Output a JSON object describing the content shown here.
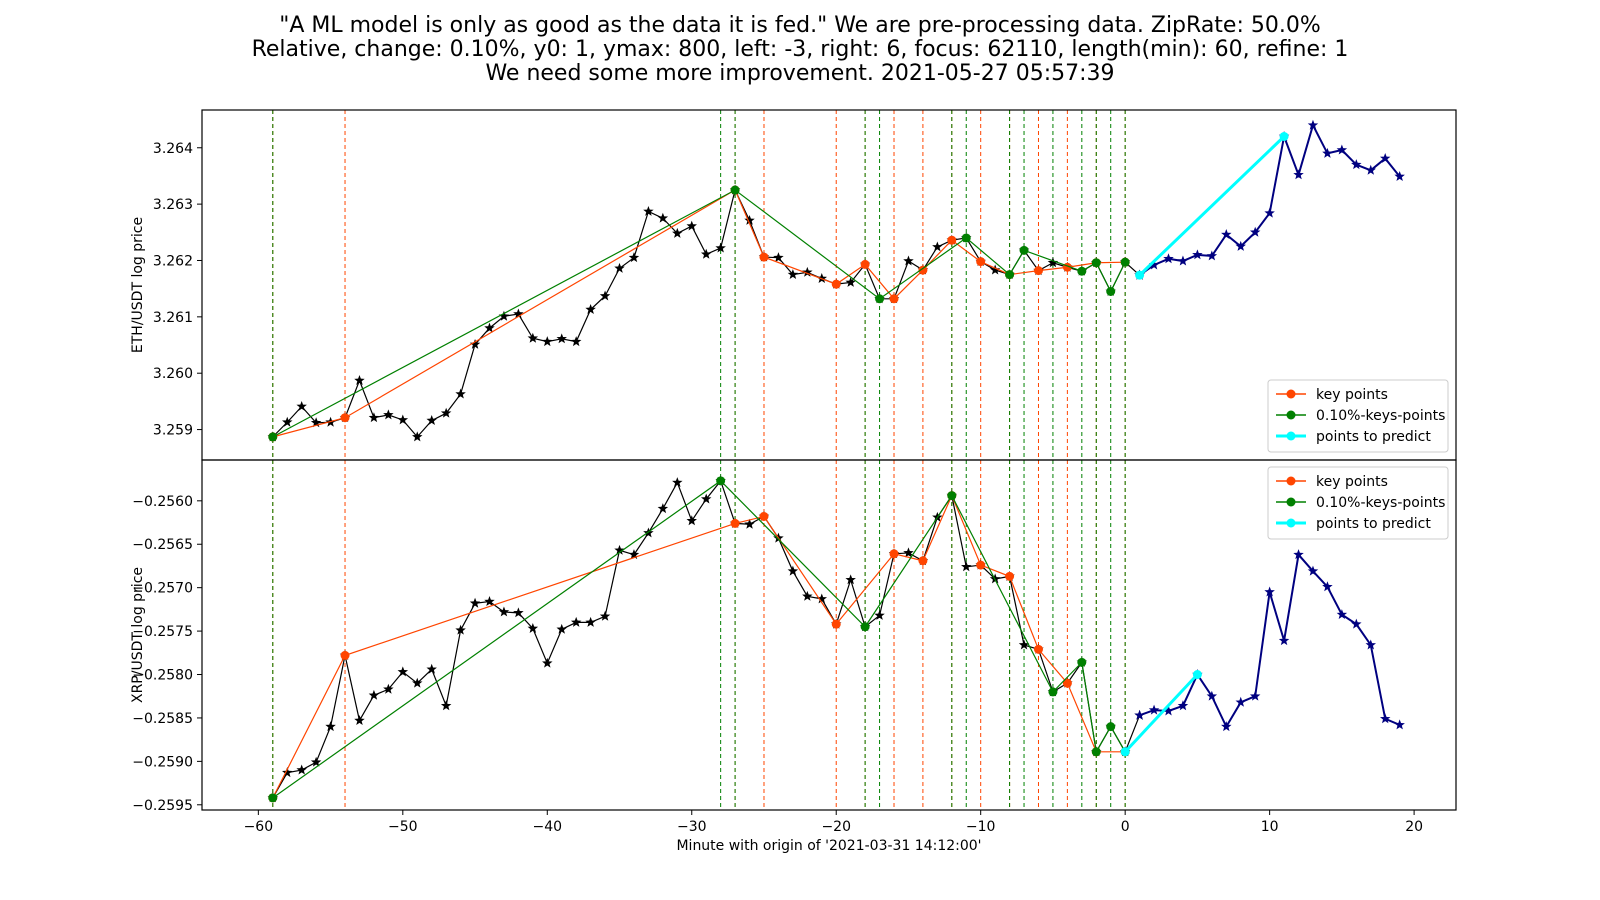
{
  "title_lines": [
    "\"A ML model is only as good as the data it is fed.\" We are pre-processing data. ZipRate: 50.0%",
    "Relative, change: 0.10%, y0: 1, ymax: 800, left: -3, right: 6, focus: 62110, length(min): 60, refine: 1",
    "We need some more improvement. 2021-05-27 05:57:39"
  ],
  "colors": {
    "price_line": "#000000",
    "future_line": "#000080",
    "key_points": "#ff4500",
    "keys_points_010": "#008000",
    "points_to_predict": "#00ffff"
  },
  "chart_data": {
    "type": "line",
    "xlabel": "Minute with origin of '2021-03-31 14:12:00'",
    "xlim": [
      -63.9,
      22.9
    ],
    "xticks": [
      -60,
      -50,
      -40,
      -30,
      -20,
      -10,
      0,
      10,
      20
    ],
    "xtick_labels": [
      "−60",
      "−50",
      "−40",
      "−30",
      "−20",
      "−10",
      "0",
      "10",
      "20"
    ],
    "legend_labels": [
      "key points",
      "0.10%-keys-points",
      "points to predict"
    ],
    "panels": [
      {
        "ylabel": "ETH/USDT log price",
        "ylim": [
          3.25846,
          3.26467
        ],
        "yticks": [
          3.259,
          3.26,
          3.261,
          3.262,
          3.263,
          3.264
        ],
        "ytick_labels": [
          "3.259",
          "3.260",
          "3.261",
          "3.262",
          "3.263",
          "3.264"
        ],
        "legend_position": "lower right",
        "price_x": [
          -59,
          -58,
          -57,
          -56,
          -55,
          -54,
          -53,
          -52,
          -51,
          -50,
          -49,
          -48,
          -47,
          -46,
          -45,
          -44,
          -43,
          -42,
          -41,
          -40,
          -39,
          -38,
          -37,
          -36,
          -35,
          -34,
          -33,
          -32,
          -31,
          -30,
          -29,
          -28,
          -27,
          -26,
          -25,
          -24,
          -23,
          -22,
          -21,
          -20,
          -19,
          -18,
          -17,
          -16,
          -15,
          -14,
          -13,
          -12,
          -11,
          -10,
          -9,
          -8,
          -7,
          -6,
          -5,
          -4,
          -3,
          -2,
          -1,
          0,
          1
        ],
        "price_y": [
          3.25887,
          3.25913,
          3.25941,
          3.25912,
          3.25913,
          3.25921,
          3.25987,
          3.25921,
          3.25926,
          3.25917,
          3.25887,
          3.25916,
          3.25929,
          3.25963,
          3.26051,
          3.2608,
          3.26101,
          3.26105,
          3.26062,
          3.26056,
          3.26061,
          3.26056,
          3.26113,
          3.26137,
          3.26186,
          3.26205,
          3.26287,
          3.26275,
          3.26248,
          3.26261,
          3.26211,
          3.26222,
          3.26325,
          3.26271,
          3.26206,
          3.26205,
          3.26175,
          3.26179,
          3.26168,
          3.26158,
          3.26161,
          3.26193,
          3.26132,
          3.26132,
          3.26199,
          3.26183,
          3.26224,
          3.26236,
          3.2624,
          3.26198,
          3.26183,
          3.26175,
          3.26218,
          3.26182,
          3.26196,
          3.26188,
          3.26181,
          3.26196,
          3.26145,
          3.26197,
          3.26174
        ],
        "future_x": [
          1,
          2,
          3,
          4,
          5,
          6,
          7,
          8,
          9,
          10,
          11,
          12,
          13,
          14,
          15,
          16,
          17,
          18,
          19
        ],
        "future_y": [
          3.26174,
          3.26192,
          3.26203,
          3.26199,
          3.2621,
          3.26208,
          3.26246,
          3.26225,
          3.2625,
          3.26284,
          3.2642,
          3.26352,
          3.2644,
          3.2639,
          3.26396,
          3.2637,
          3.2636,
          3.26381,
          3.26349
        ],
        "key_points_x": [
          -59,
          -54,
          -27,
          -25,
          -20,
          -18,
          -16,
          -14,
          -12,
          -10,
          -8,
          -6,
          -4,
          -2,
          0
        ],
        "key_points_y": [
          3.25887,
          3.25921,
          3.26325,
          3.26206,
          3.26158,
          3.26193,
          3.26132,
          3.26183,
          3.26236,
          3.26198,
          3.26175,
          3.26182,
          3.26188,
          3.26196,
          3.26197
        ],
        "keys010_x": [
          -59,
          -27,
          -17,
          -11,
          -8,
          -7,
          -3,
          -2,
          -1,
          0
        ],
        "keys010_y": [
          3.25887,
          3.26325,
          3.26132,
          3.2624,
          3.26175,
          3.26218,
          3.26181,
          3.26196,
          3.26145,
          3.26197
        ],
        "predict_x": [
          1,
          11
        ],
        "predict_y": [
          3.26174,
          3.2642
        ]
      },
      {
        "ylabel": "XRP/USDT log price",
        "ylim": [
          -0.25956,
          -0.25553
        ],
        "yticks": [
          -0.2595,
          -0.259,
          -0.2585,
          -0.258,
          -0.2575,
          -0.257,
          -0.2565,
          -0.256
        ],
        "ytick_labels": [
          "−0.2595",
          "−0.2590",
          "−0.2585",
          "−0.2580",
          "−0.2575",
          "−0.2570",
          "−0.2565",
          "−0.2560"
        ],
        "legend_position": "upper right",
        "price_x": [
          -59,
          -58,
          -57,
          -56,
          -55,
          -54,
          -53,
          -52,
          -51,
          -50,
          -49,
          -48,
          -47,
          -46,
          -45,
          -44,
          -43,
          -42,
          -41,
          -40,
          -39,
          -38,
          -37,
          -36,
          -35,
          -34,
          -33,
          -32,
          -31,
          -30,
          -29,
          -28,
          -27,
          -26,
          -25,
          -24,
          -23,
          -22,
          -21,
          -20,
          -19,
          -18,
          -17,
          -16,
          -15,
          -14,
          -13,
          -12,
          -11,
          -10,
          -9,
          -8,
          -7,
          -6,
          -5,
          -4,
          -3,
          -2,
          -1,
          0,
          1
        ],
        "price_y": [
          -0.25942,
          -0.25913,
          -0.2591,
          -0.25901,
          -0.2586,
          -0.25778,
          -0.25853,
          -0.25824,
          -0.25817,
          -0.25797,
          -0.2581,
          -0.25794,
          -0.25836,
          -0.25749,
          -0.25718,
          -0.25716,
          -0.25728,
          -0.25729,
          -0.25747,
          -0.25787,
          -0.25748,
          -0.2574,
          -0.2574,
          -0.25733,
          -0.25657,
          -0.25662,
          -0.25637,
          -0.25609,
          -0.25579,
          -0.25623,
          -0.25598,
          -0.25577,
          -0.25626,
          -0.25627,
          -0.25618,
          -0.25643,
          -0.25681,
          -0.2571,
          -0.25713,
          -0.25742,
          -0.25691,
          -0.25745,
          -0.25732,
          -0.25661,
          -0.2566,
          -0.25669,
          -0.25619,
          -0.25594,
          -0.25676,
          -0.25674,
          -0.2569,
          -0.25687,
          -0.25766,
          -0.25771,
          -0.2582,
          -0.2581,
          -0.25786,
          -0.25889,
          -0.2586,
          -0.25889,
          -0.25847
        ],
        "future_x": [
          1,
          2,
          3,
          4,
          5,
          6,
          7,
          8,
          9,
          10,
          11,
          12,
          13,
          14,
          15,
          16,
          17,
          18,
          19
        ],
        "future_y": [
          -0.25847,
          -0.25841,
          -0.25842,
          -0.25836,
          -0.258,
          -0.25825,
          -0.2586,
          -0.25832,
          -0.25825,
          -0.25705,
          -0.25761,
          -0.25662,
          -0.25681,
          -0.25699,
          -0.25731,
          -0.25742,
          -0.25766,
          -0.25851,
          -0.25858
        ],
        "key_points_x": [
          -59,
          -54,
          -27,
          -25,
          -20,
          -16,
          -14,
          -12,
          -10,
          -8,
          -6,
          -4,
          -2,
          0
        ],
        "key_points_y": [
          -0.25942,
          -0.25778,
          -0.25626,
          -0.25618,
          -0.25742,
          -0.25661,
          -0.25669,
          -0.25594,
          -0.25674,
          -0.25687,
          -0.25771,
          -0.2581,
          -0.25889,
          -0.25889
        ],
        "keys010_x": [
          -59,
          -28,
          -18,
          -12,
          -5,
          -3,
          -2,
          -1,
          0
        ],
        "keys010_y": [
          -0.25942,
          -0.25577,
          -0.25745,
          -0.25594,
          -0.2582,
          -0.25786,
          -0.25889,
          -0.2586,
          -0.25889
        ],
        "predict_x": [
          0,
          5
        ],
        "predict_y": [
          -0.25889,
          -0.258
        ]
      }
    ],
    "vlines_orange": [
      -59,
      -54,
      -27,
      -25,
      -20,
      -18,
      -16,
      -14,
      -12,
      -10,
      -8,
      -6,
      -4,
      -2,
      0
    ],
    "vlines_green": [
      -59,
      -28,
      -27,
      -18,
      -17,
      -12,
      -11,
      -8,
      -7,
      -5,
      -3,
      -2,
      -1,
      0
    ]
  }
}
